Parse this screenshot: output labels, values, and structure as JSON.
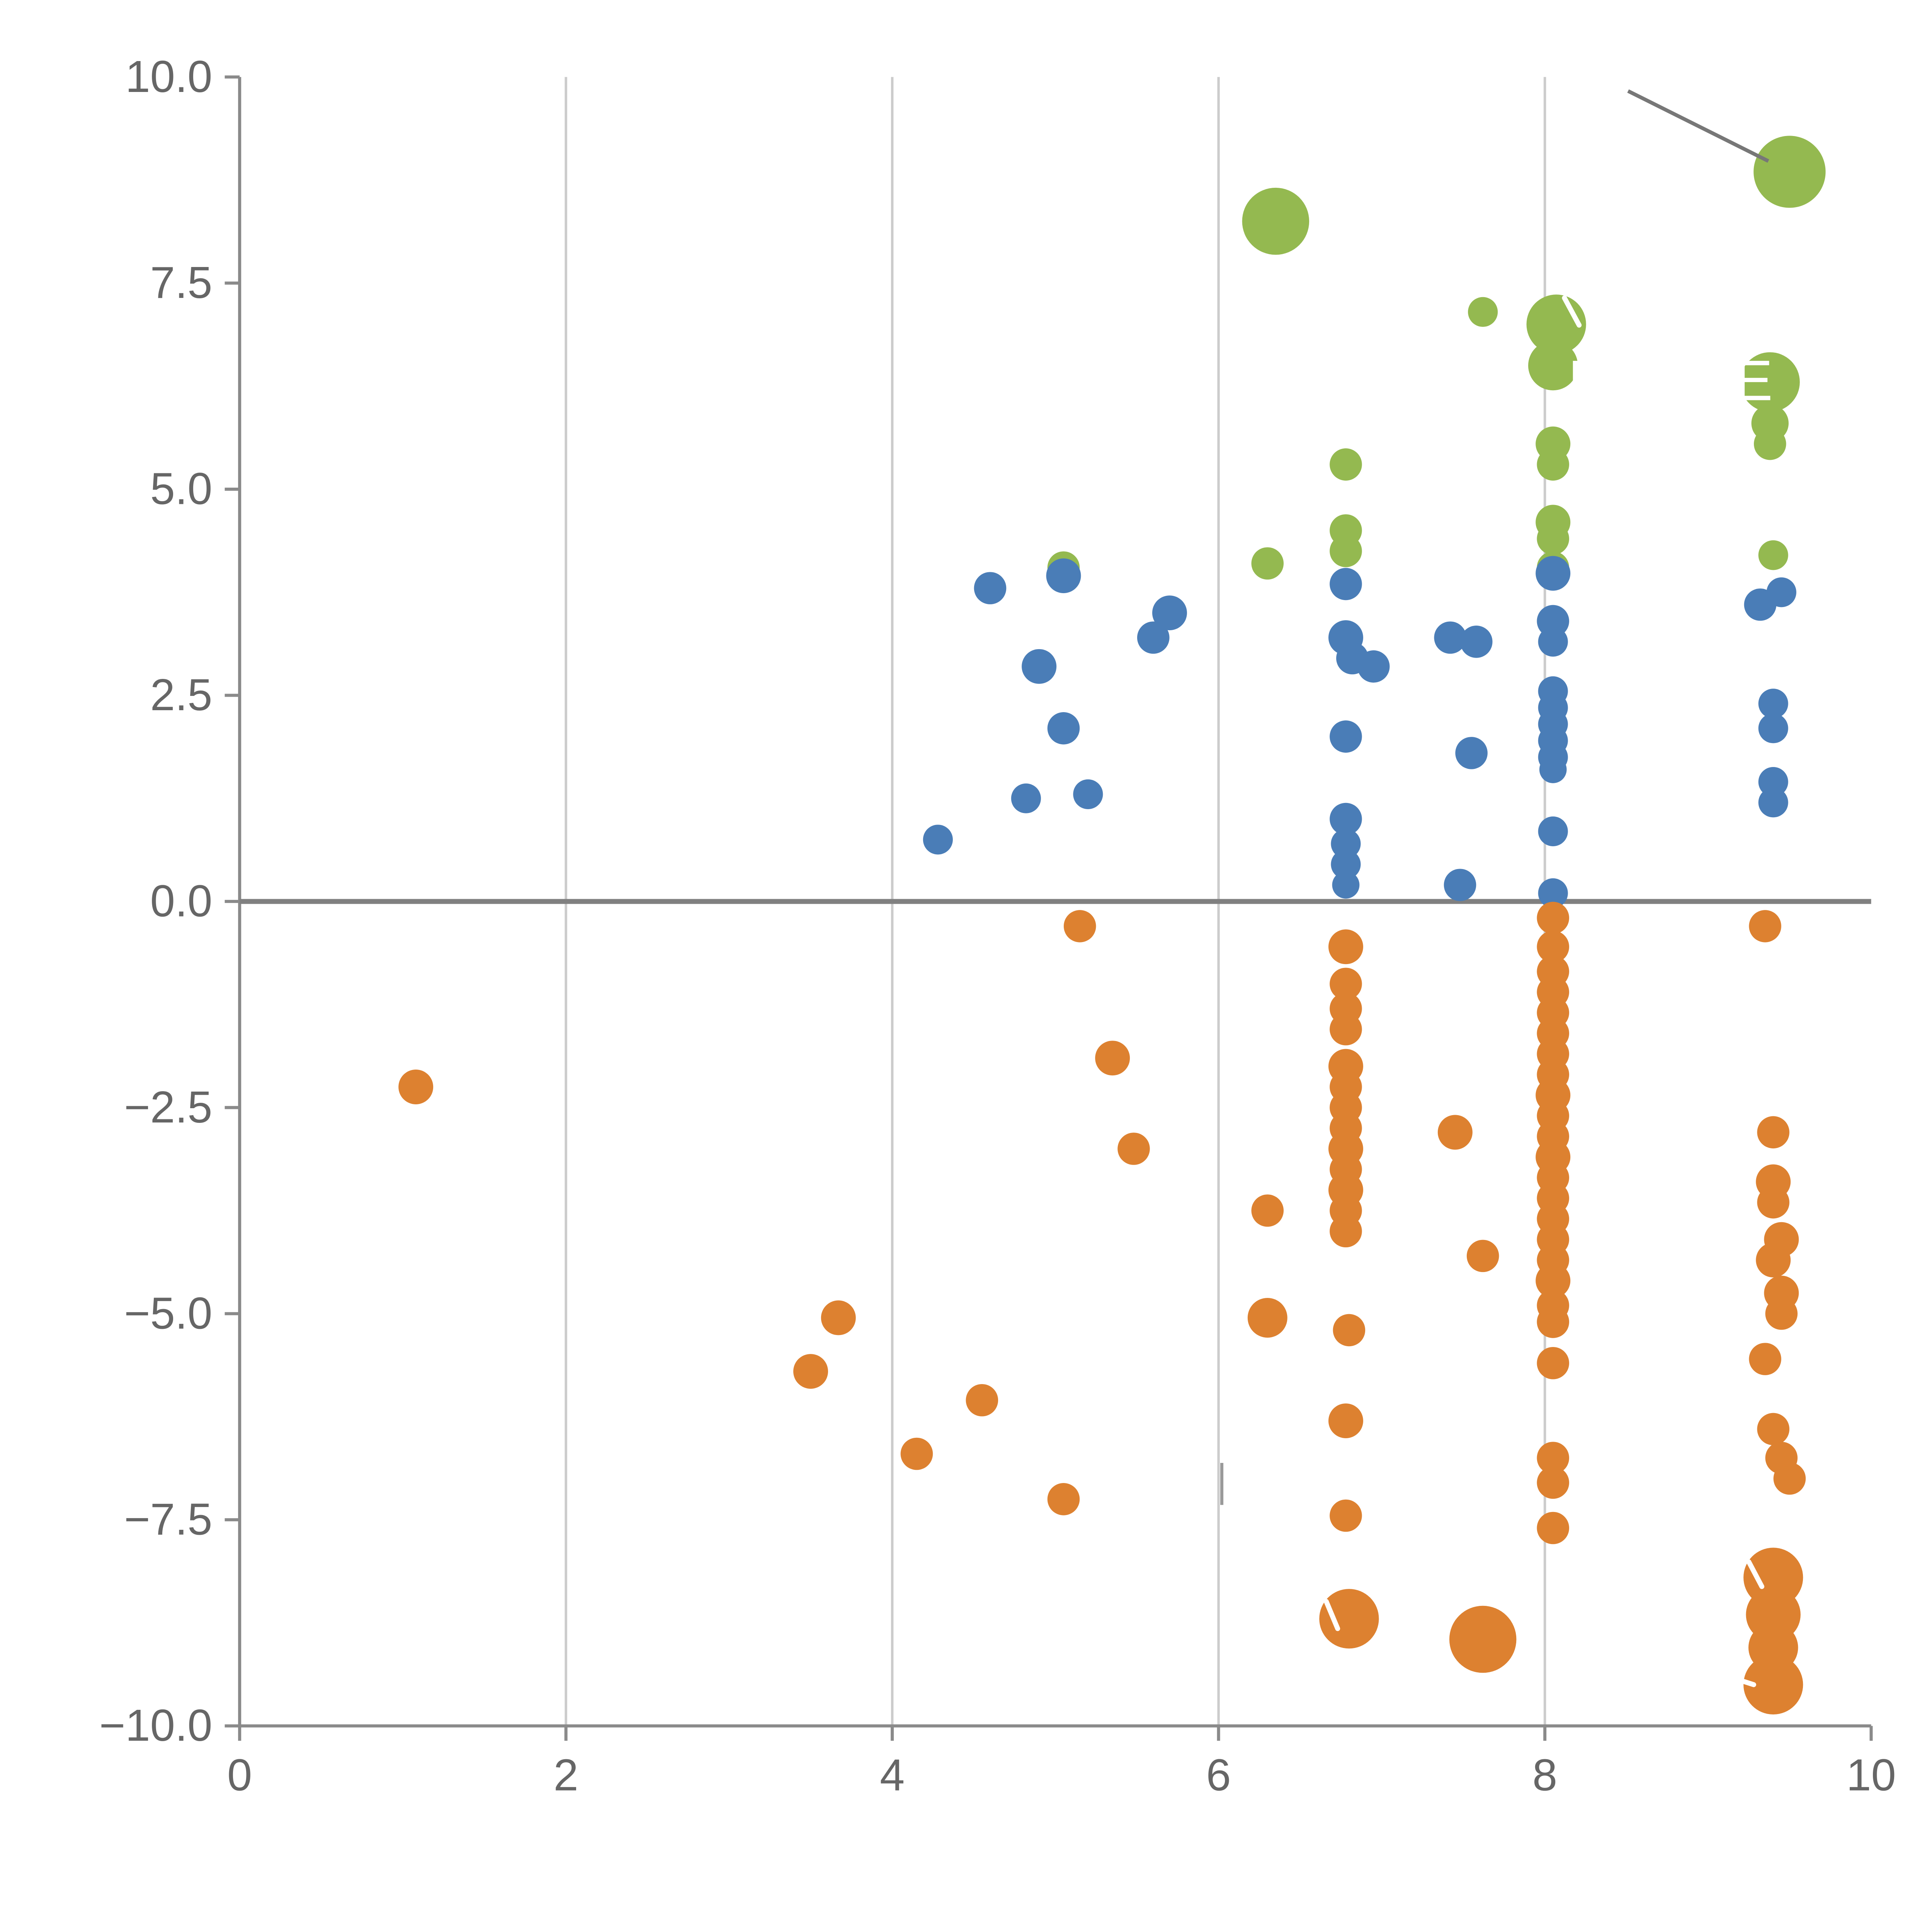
{
  "chart_data": {
    "type": "scatter",
    "title": "",
    "xlabel": "",
    "ylabel": "",
    "xlim": [
      0,
      10
    ],
    "ylim": [
      -10,
      10
    ],
    "grid": {
      "vertical_lines_at": [
        2,
        4,
        6,
        8
      ]
    },
    "zero_line_y": 0,
    "x_ticks": [
      0,
      2,
      4,
      6,
      8,
      10
    ],
    "x_tick_labels": [
      "0",
      "2",
      "4",
      "6",
      "8",
      "10"
    ],
    "y_ticks": [
      -10,
      -7.5,
      -5,
      -2.5,
      0,
      2.5,
      5,
      7.5,
      10
    ],
    "y_tick_labels": [
      "−10.0",
      "−7.5",
      "−5.0",
      "−2.5",
      "0.0",
      "2.5",
      "5.0",
      "7.5",
      "10.0"
    ],
    "legend": "none",
    "colors": {
      "axis": "#8a8a8a",
      "grid": "#cccccc",
      "zero_line": "#808080",
      "tick_label": "#666666",
      "annotation_line": "#777777",
      "white_mark": "#ffffff",
      "green": "#94b950",
      "blue": "#4a7db7",
      "orange": "#dd8130"
    },
    "series": [
      {
        "name": "green",
        "color": "#94b950",
        "points": [
          [
            9.5,
            8.85,
            29
          ],
          [
            6.35,
            8.25,
            27
          ],
          [
            8.07,
            7.0,
            24
          ],
          [
            7.62,
            7.15,
            12
          ],
          [
            8.05,
            6.5,
            20
          ],
          [
            9.38,
            6.3,
            24
          ],
          [
            9.38,
            5.8,
            15
          ],
          [
            9.38,
            5.55,
            13
          ],
          [
            8.05,
            5.55,
            14
          ],
          [
            8.05,
            5.3,
            13
          ],
          [
            6.78,
            5.3,
            13
          ],
          [
            8.05,
            4.6,
            14
          ],
          [
            8.05,
            4.4,
            13
          ],
          [
            6.78,
            4.5,
            13
          ],
          [
            6.78,
            4.25,
            13
          ],
          [
            6.3,
            4.1,
            13
          ],
          [
            5.05,
            4.05,
            13
          ],
          [
            9.4,
            4.2,
            12
          ],
          [
            8.05,
            4.05,
            13
          ]
        ]
      },
      {
        "name": "blue",
        "color": "#4a7db7",
        "points": [
          [
            4.6,
            3.8,
            13
          ],
          [
            5.05,
            3.95,
            14
          ],
          [
            5.7,
            3.5,
            14
          ],
          [
            5.6,
            3.2,
            13
          ],
          [
            4.9,
            2.85,
            14
          ],
          [
            5.05,
            2.1,
            13
          ],
          [
            4.82,
            1.25,
            12
          ],
          [
            5.2,
            1.3,
            12
          ],
          [
            4.28,
            0.75,
            12
          ],
          [
            6.78,
            3.85,
            13
          ],
          [
            6.78,
            3.2,
            14
          ],
          [
            6.82,
            2.95,
            13
          ],
          [
            6.95,
            2.85,
            13
          ],
          [
            6.78,
            2.0,
            13
          ],
          [
            6.78,
            1.0,
            13
          ],
          [
            6.78,
            0.7,
            12
          ],
          [
            6.78,
            0.45,
            12
          ],
          [
            6.78,
            0.2,
            11
          ],
          [
            7.42,
            3.2,
            13
          ],
          [
            7.58,
            3.15,
            13
          ],
          [
            7.55,
            1.8,
            13
          ],
          [
            7.48,
            0.2,
            13
          ],
          [
            8.05,
            3.98,
            14
          ],
          [
            8.05,
            3.4,
            13
          ],
          [
            8.05,
            3.15,
            12
          ],
          [
            8.05,
            2.55,
            12
          ],
          [
            8.05,
            2.35,
            12
          ],
          [
            8.05,
            2.15,
            12
          ],
          [
            8.05,
            1.95,
            12
          ],
          [
            8.05,
            1.75,
            12
          ],
          [
            8.05,
            1.6,
            11
          ],
          [
            8.05,
            0.85,
            12
          ],
          [
            8.05,
            0.1,
            12
          ],
          [
            9.32,
            3.6,
            13
          ],
          [
            9.45,
            3.75,
            12
          ],
          [
            9.4,
            2.4,
            12
          ],
          [
            9.4,
            2.1,
            12
          ],
          [
            9.4,
            1.45,
            12
          ],
          [
            9.4,
            1.2,
            12
          ]
        ]
      },
      {
        "name": "orange",
        "color": "#dd8130",
        "points": [
          [
            1.08,
            -2.25,
            14
          ],
          [
            5.15,
            -0.3,
            13
          ],
          [
            5.35,
            -1.9,
            14
          ],
          [
            5.48,
            -3.0,
            13
          ],
          [
            3.67,
            -5.05,
            14
          ],
          [
            3.5,
            -5.7,
            14
          ],
          [
            4.55,
            -6.05,
            13
          ],
          [
            4.15,
            -6.7,
            13
          ],
          [
            5.05,
            -7.25,
            13
          ],
          [
            6.3,
            -3.75,
            13
          ],
          [
            6.3,
            -5.05,
            16
          ],
          [
            6.78,
            -0.55,
            14
          ],
          [
            6.78,
            -1.0,
            13
          ],
          [
            6.78,
            -1.3,
            13
          ],
          [
            6.78,
            -1.55,
            13
          ],
          [
            6.78,
            -2.0,
            14
          ],
          [
            6.78,
            -2.25,
            13
          ],
          [
            6.78,
            -2.5,
            13
          ],
          [
            6.78,
            -2.75,
            13
          ],
          [
            6.78,
            -3.0,
            14
          ],
          [
            6.78,
            -3.25,
            13
          ],
          [
            6.78,
            -3.5,
            14
          ],
          [
            6.78,
            -3.75,
            13
          ],
          [
            6.78,
            -4.0,
            13
          ],
          [
            6.8,
            -5.2,
            13
          ],
          [
            6.78,
            -6.3,
            14
          ],
          [
            6.78,
            -7.45,
            13
          ],
          [
            6.8,
            -8.7,
            24
          ],
          [
            7.45,
            -2.8,
            14
          ],
          [
            7.62,
            -4.3,
            13
          ],
          [
            7.62,
            -8.95,
            27
          ],
          [
            8.05,
            -0.2,
            13
          ],
          [
            8.05,
            -0.55,
            13
          ],
          [
            8.05,
            -0.85,
            13
          ],
          [
            8.05,
            -1.1,
            13
          ],
          [
            8.05,
            -1.35,
            13
          ],
          [
            8.05,
            -1.6,
            13
          ],
          [
            8.05,
            -1.85,
            13
          ],
          [
            8.05,
            -2.1,
            13
          ],
          [
            8.05,
            -2.35,
            14
          ],
          [
            8.05,
            -2.6,
            13
          ],
          [
            8.05,
            -2.85,
            13
          ],
          [
            8.05,
            -3.1,
            14
          ],
          [
            8.05,
            -3.35,
            13
          ],
          [
            8.05,
            -3.6,
            13
          ],
          [
            8.05,
            -3.85,
            13
          ],
          [
            8.05,
            -4.1,
            13
          ],
          [
            8.05,
            -4.35,
            13
          ],
          [
            8.05,
            -4.6,
            14
          ],
          [
            8.05,
            -4.9,
            13
          ],
          [
            8.05,
            -5.1,
            13
          ],
          [
            8.05,
            -5.6,
            13
          ],
          [
            8.05,
            -6.75,
            13
          ],
          [
            8.05,
            -7.05,
            13
          ],
          [
            8.05,
            -7.6,
            13
          ],
          [
            9.35,
            -0.3,
            13
          ],
          [
            9.4,
            -2.8,
            13
          ],
          [
            9.4,
            -3.4,
            14
          ],
          [
            9.4,
            -3.65,
            13
          ],
          [
            9.45,
            -4.1,
            14
          ],
          [
            9.4,
            -4.35,
            14
          ],
          [
            9.45,
            -4.75,
            14
          ],
          [
            9.45,
            -5.0,
            13
          ],
          [
            9.35,
            -5.55,
            13
          ],
          [
            9.4,
            -6.4,
            13
          ],
          [
            9.45,
            -6.75,
            13
          ],
          [
            9.5,
            -7.0,
            13
          ],
          [
            9.4,
            -8.2,
            24
          ],
          [
            9.4,
            -8.65,
            22
          ],
          [
            9.4,
            -9.05,
            20
          ],
          [
            9.4,
            -9.5,
            24
          ]
        ]
      }
    ],
    "annotations": {
      "pointer_line": {
        "x1": 8.51,
        "y1": 9.83,
        "x2": 9.37,
        "y2": 8.98
      },
      "gray_segment": {
        "x1": 6.02,
        "y1": -6.81,
        "x2": 6.02,
        "y2": -7.32
      },
      "white_segments": [
        {
          "x1": 8.12,
          "y1": 7.32,
          "x2": 8.21,
          "y2": 6.99
        },
        {
          "x1": 6.66,
          "y1": -8.49,
          "x2": 6.73,
          "y2": -8.82
        },
        {
          "x1": 9.25,
          "y1": -8.01,
          "x2": 9.33,
          "y2": -8.31
        },
        {
          "x1": 9.17,
          "y1": -9.43,
          "x2": 9.28,
          "y2": -9.5
        }
      ],
      "text_fragments": [
        {
          "text": "P",
          "x": 8.26,
          "y": 6.08
        },
        {
          "text": "E",
          "x": 9.28,
          "y": 6.08
        }
      ]
    }
  }
}
